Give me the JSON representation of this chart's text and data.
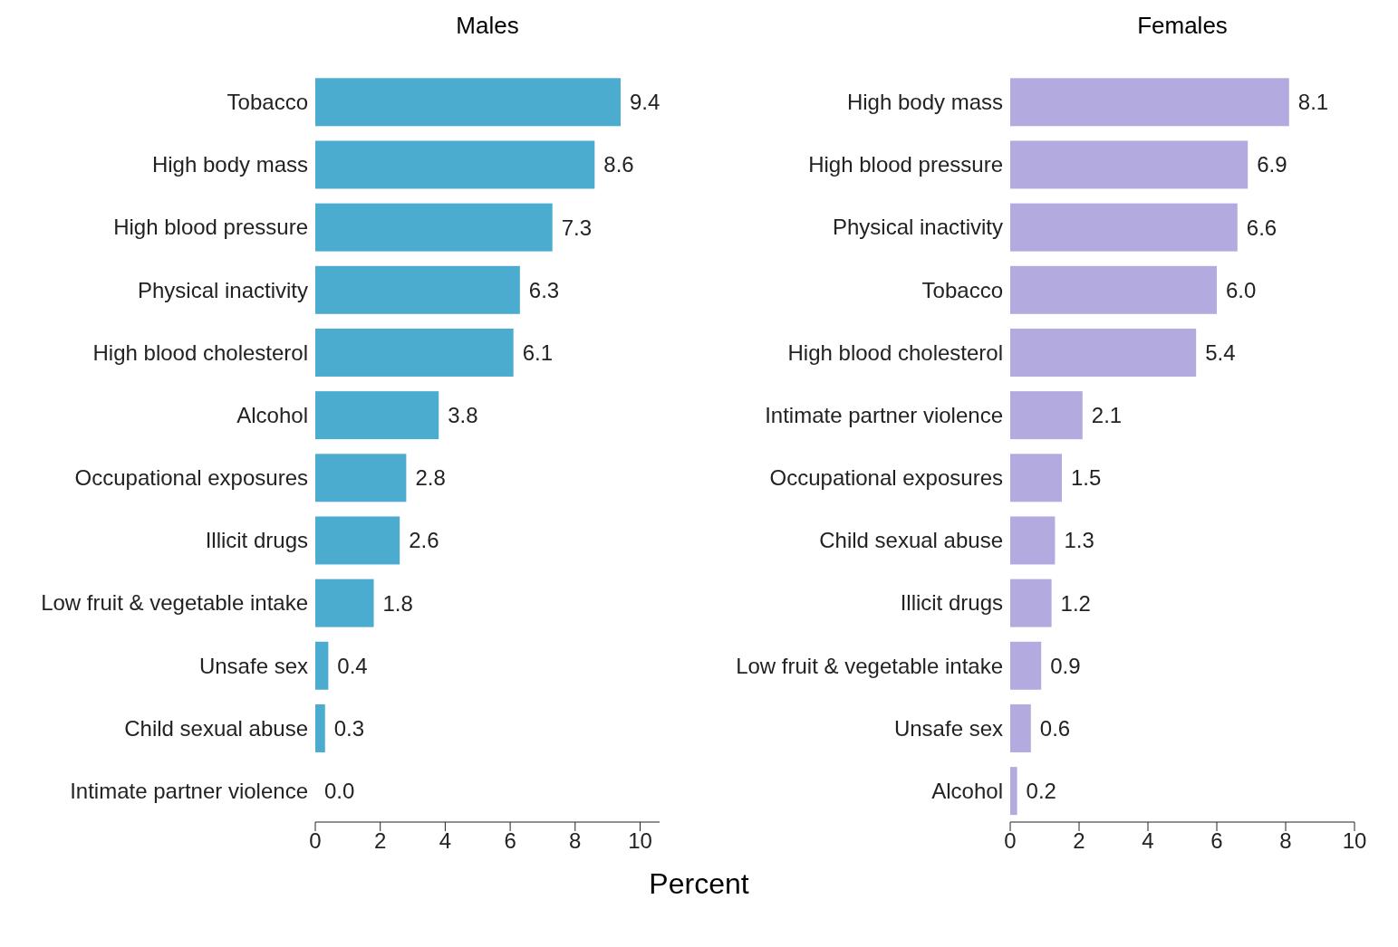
{
  "chart_data": [
    {
      "type": "bar",
      "orientation": "horizontal",
      "title": "Males",
      "xlabel": "Percent",
      "categories": [
        "Tobacco",
        "High body mass",
        "High blood pressure",
        "Physical inactivity",
        "High blood cholesterol",
        "Alcohol",
        "Occupational exposures",
        "Illicit drugs",
        "Low fruit & vegetable intake",
        "Unsafe sex",
        "Child sexual abuse",
        "Intimate partner violence"
      ],
      "values": [
        9.4,
        8.6,
        7.3,
        6.3,
        6.1,
        3.8,
        2.8,
        2.6,
        1.8,
        0.4,
        0.3,
        0.0
      ],
      "value_labels": [
        "9.4",
        "8.6",
        "7.3",
        "6.3",
        "6.1",
        "3.8",
        "2.8",
        "2.6",
        "1.8",
        "0.4",
        "0.3",
        "0.0"
      ],
      "color": "#4bacd0",
      "xlim": [
        0,
        10.6
      ],
      "xticks": [
        0,
        2,
        4,
        6,
        8,
        10
      ]
    },
    {
      "type": "bar",
      "orientation": "horizontal",
      "title": "Females",
      "categories": [
        "High body mass",
        "High blood pressure",
        "Physical inactivity",
        "Tobacco",
        "High blood cholesterol",
        "Intimate partner violence",
        "Occupational exposures",
        "Child sexual abuse",
        "Illicit drugs",
        "Low fruit & vegetable intake",
        "Unsafe sex",
        "Alcohol"
      ],
      "values": [
        8.1,
        6.9,
        6.6,
        6.0,
        5.4,
        2.1,
        1.5,
        1.3,
        1.2,
        0.9,
        0.6,
        0.2
      ],
      "value_labels": [
        "8.1",
        "6.9",
        "6.6",
        "6.0",
        "5.4",
        "2.1",
        "1.5",
        "1.3",
        "1.2",
        "0.9",
        "0.6",
        "0.2"
      ],
      "color": "#b3abe0",
      "xlim": [
        0,
        10
      ],
      "xticks": [
        0,
        2,
        4,
        6,
        8,
        10
      ]
    }
  ]
}
